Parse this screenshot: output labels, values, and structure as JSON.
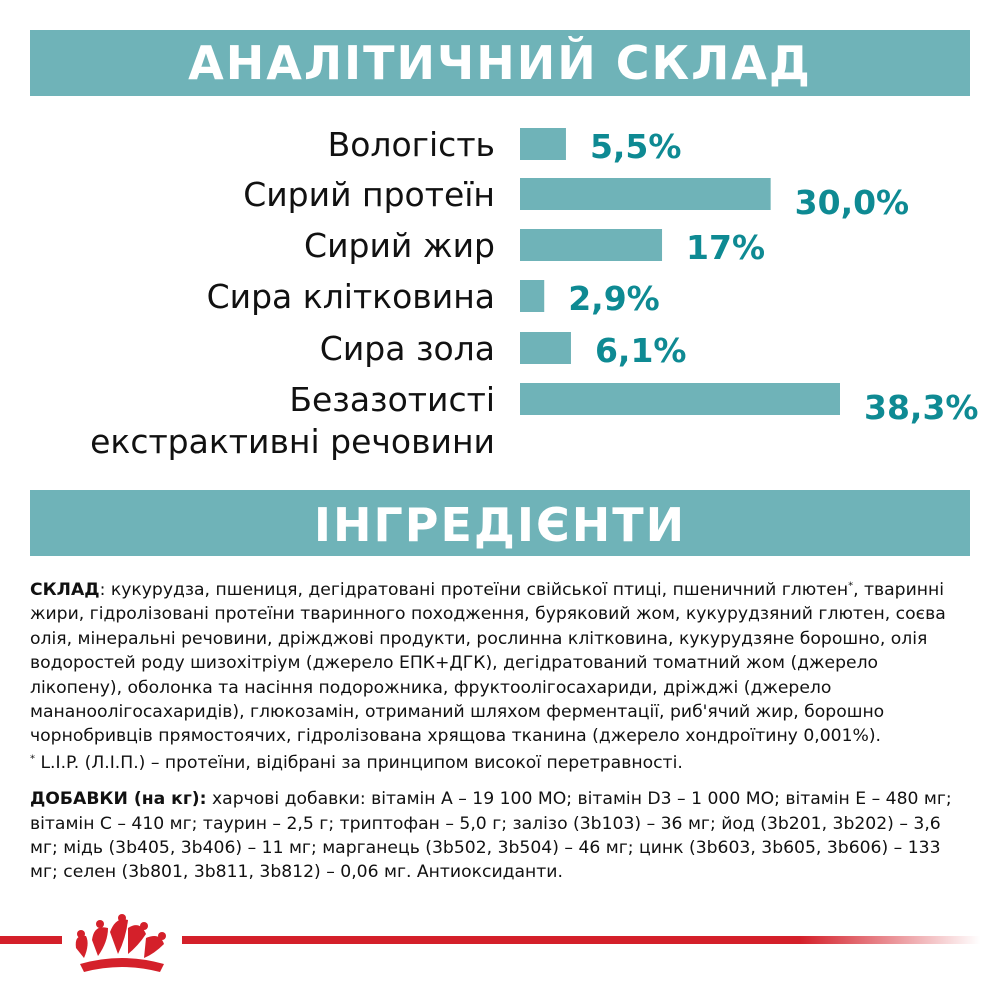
{
  "header": {
    "analytical_title": "АНАЛІТИЧНИЙ СКЛАД",
    "ingredients_title": "ІНГРЕДІЄНТИ"
  },
  "colors": {
    "banner": "#6fb3b8",
    "bar": "#6fb3b8",
    "value_text": "#0e8a93",
    "brand_red": "#d4202a"
  },
  "chart_data": {
    "type": "bar",
    "orientation": "horizontal",
    "categories": [
      "Вологість",
      "Сирий протеїн",
      "Сирий жир",
      "Сира клітковина",
      "Сира зола",
      "Безазотисті екстрактивні речовини"
    ],
    "label_lines": [
      [
        "Вологість"
      ],
      [
        "Сирий протеїн"
      ],
      [
        "Сирий жир"
      ],
      [
        "Сира клітковина"
      ],
      [
        "Сира зола"
      ],
      [
        "Безазотисті",
        "екстрактивні речовини"
      ]
    ],
    "values": [
      5.5,
      30.0,
      17,
      2.9,
      6.1,
      38.3
    ],
    "value_labels": [
      "5,5%",
      "30,0%",
      "17%",
      "2,9%",
      "6,1%",
      "38,3%"
    ],
    "xlim": [
      0,
      38.3
    ],
    "grid": false
  },
  "composition": {
    "lead": "СКЛАД",
    "text_before_sup": ": кукурудза, пшениця, дегідратовані протеїни свійської птиці, пшеничний глютен",
    "sup": "*",
    "text_after_sup": ", тваринні жири, гідролізовані протеїни тваринного походження, буряковий жом, кукурудзяний глютен, соєва олія, мінеральні речовини, дріжджові продукти, рослинна клітковина, кукурудзяне борошно, олія водоростей роду шизохітріум (джерело ЕПК+ДГК), дегідратований томатний жом (джерело лікопену), оболонка та насіння подорожника, фруктоолігосахариди, дріжджі (джерело мананоолігосахаридів), глюкозамін, отриманий шляхом ферментації, риб'ячий жир, борошно чорнобривців прямостоячих, гідролізована хрящова тканина (джерело хондроїтину 0,001%).",
    "footnote_mark": "*",
    "footnote": " L.I.P. (Л.І.П.) – протеїни, відібрані за принципом високої перетравності."
  },
  "additives": {
    "lead": "ДОБАВКИ (на кг):",
    "text": " харчові добавки: вітамін А – 19 100 МО; вітамін D3 – 1 000 МО; вітамін Е – 480 мг; вітамін С – 410 мг; таурин – 2,5 г; триптофан – 5,0 г; залізо (3b103) – 36 мг; йод (3b201, 3b202) – 3,6 мг; мідь (3b405, 3b406) – 11 мг; марганець (3b502, 3b504) – 46 мг; цинк (3b603, 3b605, 3b606) – 133 мг; селен (3b801, 3b811, 3b812) – 0,06 мг. Антиоксиданти."
  },
  "footer": {
    "logo_icon": "royal-canin-crown-icon"
  }
}
